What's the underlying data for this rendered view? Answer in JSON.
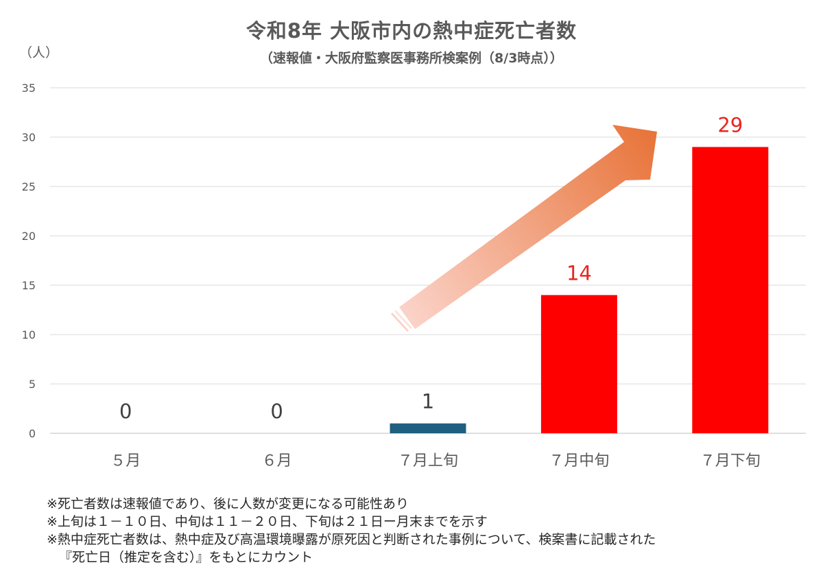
{
  "chart_data": {
    "type": "bar",
    "title": "令和8年 大阪市内の熱中症死亡者数",
    "subtitle": "（速報値・大阪府監察医事務所検案例（8/3時点））",
    "ylabel": "（人）",
    "categories": [
      "５月",
      "６月",
      "７月上旬",
      "７月中旬",
      "７月下旬"
    ],
    "values": [
      0,
      0,
      1,
      14,
      29
    ],
    "data_labels": [
      "0",
      "0",
      "1",
      "14",
      "29"
    ],
    "ylim": [
      0,
      35
    ],
    "yticks": [
      "0",
      "5",
      "10",
      "15",
      "20",
      "25",
      "30",
      "35"
    ],
    "grid": true,
    "colors": {
      "7月上旬": "#1f5f80",
      "7月中旬": "#ff0000",
      "7月下旬": "#ff0000",
      "label_dark": "#404040",
      "label_red": "#e8261e",
      "arrow_start": "#fbd3c9",
      "arrow_end": "#e8743a"
    },
    "annotation": "trend-arrow"
  },
  "notes": [
    "※死亡者数は速報値であり、後に人数が変更になる可能性あり",
    "※上旬は１－１０日、中旬は１１－２０日、下旬は２１日ー月末までを示す",
    "※熱中症死亡者数は、熱中症及び高温環境曝露が原死因と判断された事例について、検案書に記載された",
    "『死亡日（推定を含む）』をもとにカウント"
  ]
}
